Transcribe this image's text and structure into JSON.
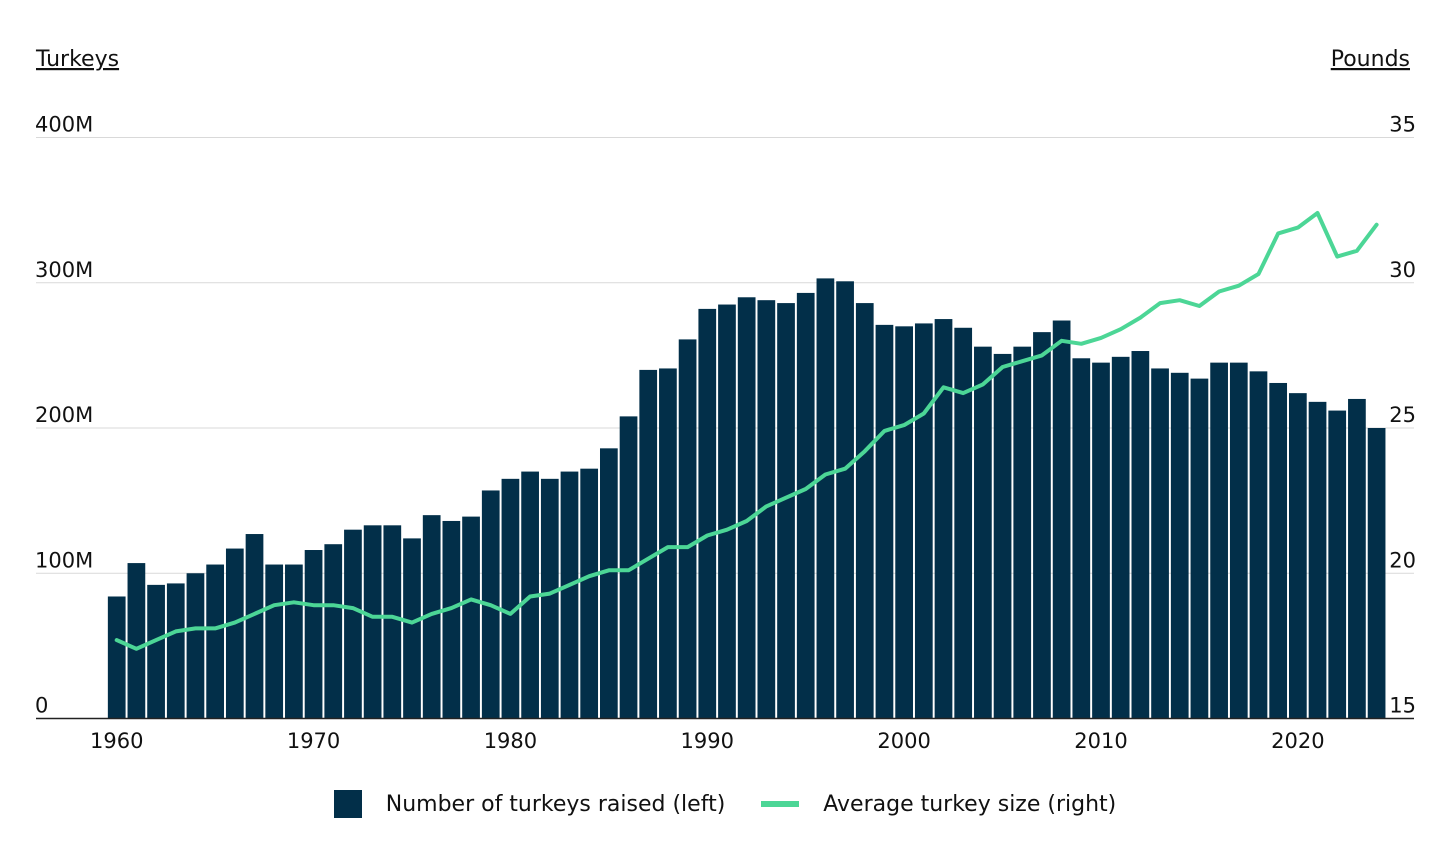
{
  "chart_data": {
    "type": "bar+line",
    "title": "",
    "left_axis_title": "Turkeys",
    "right_axis_title": "Pounds",
    "left_ticks": [
      "0",
      "100M",
      "200M",
      "300M",
      "400M"
    ],
    "right_ticks": [
      "15",
      "20",
      "25",
      "30",
      "35"
    ],
    "x_ticks": [
      "1960",
      "1970",
      "1980",
      "1990",
      "2000",
      "2010",
      "2020"
    ],
    "ylim_left": [
      0,
      400
    ],
    "ylim_right": [
      15,
      35
    ],
    "left_units": "millions of turkeys",
    "x": [
      1960,
      1961,
      1962,
      1963,
      1964,
      1965,
      1966,
      1967,
      1968,
      1969,
      1970,
      1971,
      1972,
      1973,
      1974,
      1975,
      1976,
      1977,
      1978,
      1979,
      1980,
      1981,
      1982,
      1983,
      1984,
      1985,
      1986,
      1987,
      1988,
      1989,
      1990,
      1991,
      1992,
      1993,
      1994,
      1995,
      1996,
      1997,
      1998,
      1999,
      2000,
      2001,
      2002,
      2003,
      2004,
      2005,
      2006,
      2007,
      2008,
      2009,
      2010,
      2011,
      2012,
      2013,
      2014,
      2015,
      2016,
      2017,
      2018,
      2019,
      2020,
      2021,
      2022,
      2023,
      2024
    ],
    "series": [
      {
        "name": "Number of turkeys raised (left)",
        "type": "bar",
        "axis": "left",
        "color": "#022f49",
        "values": [
          84,
          107,
          92,
          93,
          100,
          106,
          117,
          127,
          106,
          106,
          116,
          120,
          130,
          133,
          133,
          124,
          140,
          136,
          139,
          157,
          165,
          170,
          165,
          170,
          172,
          186,
          208,
          240,
          241,
          261,
          282,
          285,
          290,
          288,
          286,
          293,
          303,
          301,
          286,
          271,
          270,
          272,
          275,
          269,
          256,
          251,
          256,
          266,
          274,
          248,
          245,
          249,
          253,
          241,
          238,
          234,
          245,
          245,
          239,
          231,
          224,
          218,
          212,
          220,
          200
        ]
      },
      {
        "name": "Average turkey size (right)",
        "type": "line",
        "axis": "right",
        "color": "#4cd696",
        "values": [
          17.7,
          17.4,
          17.7,
          18.0,
          18.1,
          18.1,
          18.3,
          18.6,
          18.9,
          19.0,
          18.9,
          18.9,
          18.8,
          18.5,
          18.5,
          18.3,
          18.6,
          18.8,
          19.1,
          18.9,
          18.6,
          19.2,
          19.3,
          19.6,
          19.9,
          20.1,
          20.1,
          20.5,
          20.9,
          20.9,
          21.3,
          21.5,
          21.8,
          22.3,
          22.6,
          22.9,
          23.4,
          23.6,
          24.2,
          24.9,
          25.1,
          25.5,
          26.4,
          26.2,
          26.5,
          27.1,
          27.3,
          27.5,
          28.0,
          27.9,
          28.1,
          28.4,
          28.8,
          29.3,
          29.4,
          29.2,
          29.7,
          29.9,
          30.3,
          31.7,
          31.9,
          32.4,
          30.9,
          31.1,
          32.0
        ]
      }
    ],
    "grid": true,
    "legend_position": "bottom"
  }
}
